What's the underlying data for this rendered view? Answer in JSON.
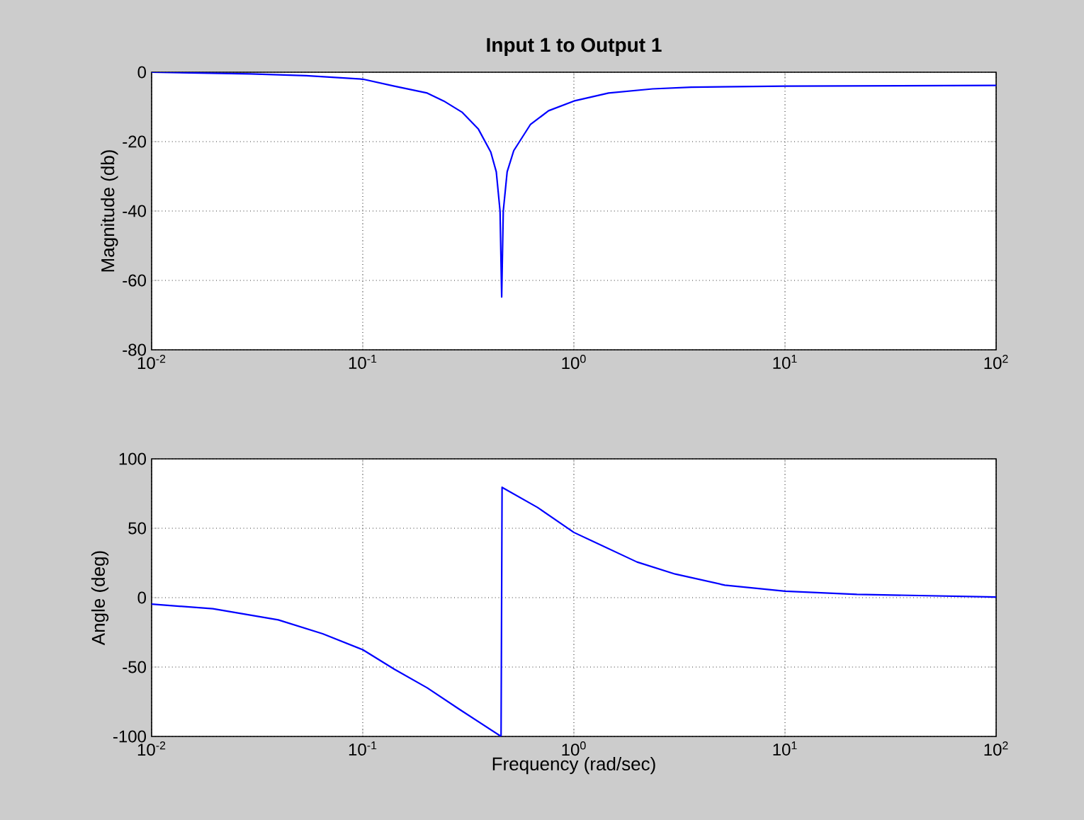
{
  "chart_data": [
    {
      "type": "line",
      "title": "Input 1 to Output 1",
      "ylabel": "Magnitude (db)",
      "log": "x",
      "grid": true,
      "xlim": [
        0.01,
        100
      ],
      "xticks": [
        {
          "value": 0.01,
          "label": "10$^{-2}$"
        },
        {
          "value": 0.1,
          "label": "10$^{-1}$"
        },
        {
          "value": 1,
          "label": "10$^{0}$"
        },
        {
          "value": 10,
          "label": "10$^{1}$"
        },
        {
          "value": 100,
          "label": "10$^{2}$"
        }
      ],
      "ylim": [
        -80,
        0
      ],
      "yticks": [
        -80,
        -60,
        -40,
        -20,
        0
      ],
      "series": [
        {
          "color": "#0000ff",
          "x": [
            0.01,
            0.0295,
            0.054,
            0.1,
            0.141,
            0.202,
            0.242,
            0.295,
            0.353,
            0.404,
            0.429,
            0.447,
            0.455,
            0.463,
            0.483,
            0.519,
            0.622,
            0.759,
            1.0,
            1.46,
            2.36,
            3.6,
            10,
            100
          ],
          "values": [
            0,
            -0.5,
            -1,
            -2,
            -4,
            -6,
            -8.3,
            -11.5,
            -16.4,
            -23,
            -28.7,
            -40,
            -64.8,
            -40,
            -28.7,
            -22.6,
            -15.1,
            -11.1,
            -8.3,
            -6,
            -4.8,
            -4.3,
            -4,
            -3.8
          ]
        }
      ]
    },
    {
      "type": "line",
      "xlabel": "Frequency (rad/sec)",
      "ylabel": "Angle (deg)",
      "log": "x",
      "grid": true,
      "xlim": [
        0.01,
        100
      ],
      "xticks": [
        {
          "value": 0.01,
          "label": "10$^{-2}$"
        },
        {
          "value": 0.1,
          "label": "10$^{-1}$"
        },
        {
          "value": 1,
          "label": "10$^{0}$"
        },
        {
          "value": 10,
          "label": "10$^{1}$"
        },
        {
          "value": 100,
          "label": "10$^{2}$"
        }
      ],
      "ylim": [
        -100,
        100
      ],
      "yticks": [
        -100,
        -50,
        0,
        50,
        100
      ],
      "series": [
        {
          "color": "#0000ff",
          "x": [
            0.01,
            0.0195,
            0.0398,
            0.0646,
            0.1,
            0.141,
            0.202,
            0.288,
            0.452,
            0.457,
            0.673,
            1.0,
            1.99,
            3.02,
            5.19,
            10,
            21.9,
            100
          ],
          "values": [
            -4.7,
            -8,
            -16,
            -26,
            -37.5,
            -51.5,
            -65,
            -80.6,
            -100,
            79.5,
            65,
            47,
            25.7,
            17,
            9,
            4.7,
            2.4,
            0.4
          ]
        }
      ]
    }
  ]
}
